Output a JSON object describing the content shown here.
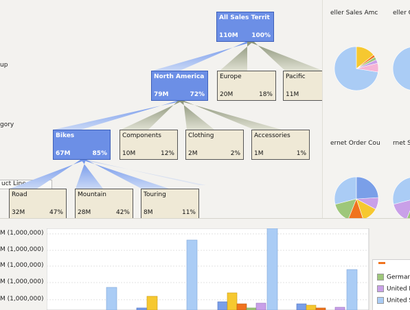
{
  "tree": {
    "level_labels": [
      "up",
      "gory",
      "uct Line"
    ],
    "root": {
      "name": "All Sales Territ",
      "value": "110M",
      "pct": "100%"
    },
    "level1": [
      {
        "name": "North America",
        "value": "79M",
        "pct": "72%",
        "selected": true
      },
      {
        "name": "Europe",
        "value": "20M",
        "pct": "18%"
      },
      {
        "name": "Pacific",
        "value": "11M",
        "pct": ""
      }
    ],
    "level2": [
      {
        "name": "Bikes",
        "value": "67M",
        "pct": "85%",
        "selected": true
      },
      {
        "name": "Components",
        "value": "10M",
        "pct": "12%"
      },
      {
        "name": "Clothing",
        "value": "2M",
        "pct": "2%"
      },
      {
        "name": "Accessories",
        "value": "1M",
        "pct": "1%"
      }
    ],
    "level3": [
      {
        "name": "Road",
        "value": "32M",
        "pct": "47%"
      },
      {
        "name": "Mountain",
        "value": "28M",
        "pct": "42%"
      },
      {
        "name": "Touring",
        "value": "8M",
        "pct": "11%"
      }
    ]
  },
  "pies": {
    "titles": [
      "eller Sales Amc",
      "eller C",
      "ernet Order Cou",
      "rnet S"
    ],
    "colors": [
      "#aaccf5",
      "#f5b5d6",
      "#c9a0e8",
      "#9ec77a",
      "#f0731e",
      "#f6c830",
      "#7a9fe8"
    ]
  },
  "chart": {
    "y_labels": [
      "M (1,000,000)",
      "M (1,000,000)",
      "M (1,000,000)",
      "M (1,000,000)",
      "M (1,000,000)"
    ],
    "legend": [
      {
        "label": "German",
        "color": "#9ec77a"
      },
      {
        "label": "United K",
        "color": "#c9a0e8"
      },
      {
        "label": "United S",
        "color": "#aaccf5"
      }
    ],
    "partial_legend_color": "#f0731e"
  }
}
